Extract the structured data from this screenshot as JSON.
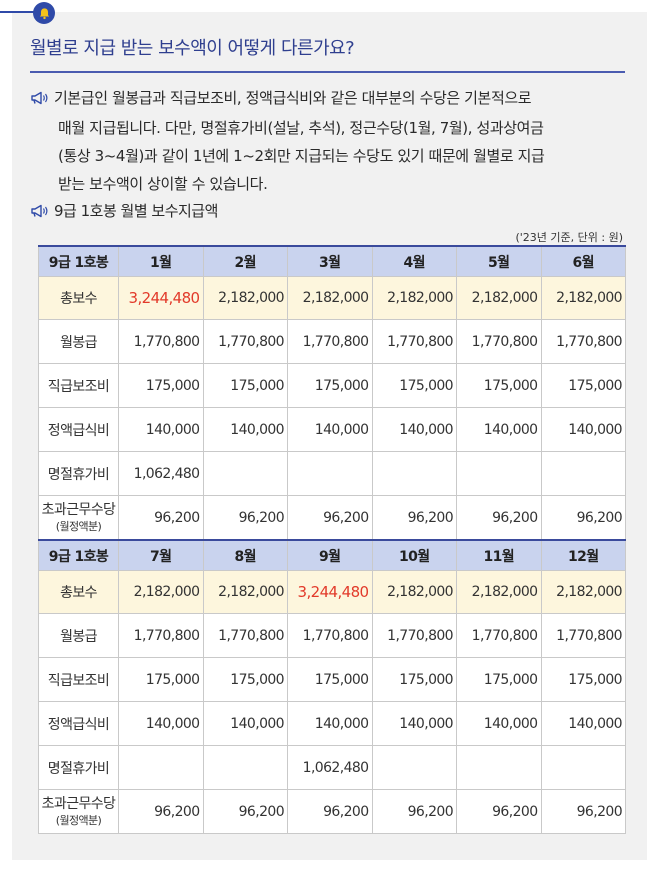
{
  "title": "월별로 지급 받는 보수액이 어떻게 다른가요?",
  "paragraph_lines": [
    "기본급인 월봉급과 직급보조비, 정액급식비와 같은 대부분의 수당은 기본적으로",
    "매월 지급됩니다. 다만, 명절휴가비(설날, 추석), 정근수당(1월, 7월), 성과상여금",
    "(통상 3~4월)과 같이 1년에 1~2회만 지급되는 수당도 있기 때문에 월별로 지급",
    "받는 보수액이 상이할 수 있습니다."
  ],
  "subheading": "9급 1호봉 월별 보수지급액",
  "unit_note": "('23년 기준, 단위 : 원)",
  "icons": {
    "header": "bell-icon",
    "bullet": "megaphone-icon"
  },
  "colors": {
    "accent": "#2f4aa8",
    "header_bg": "#c9d3ee",
    "total_bg": "#fdf6dd",
    "highlight": "#e23a2a"
  },
  "table": {
    "blocks": [
      {
        "header": [
          "9급 1호봉",
          "1월",
          "2월",
          "3월",
          "4월",
          "5월",
          "6월"
        ],
        "rows": [
          {
            "label": "총보수",
            "values": [
              "3,244,480",
              "2,182,000",
              "2,182,000",
              "2,182,000",
              "2,182,000",
              "2,182,000"
            ]
          },
          {
            "label": "월봉급",
            "values": [
              "1,770,800",
              "1,770,800",
              "1,770,800",
              "1,770,800",
              "1,770,800",
              "1,770,800"
            ]
          },
          {
            "label": "직급보조비",
            "values": [
              "175,000",
              "175,000",
              "175,000",
              "175,000",
              "175,000",
              "175,000"
            ]
          },
          {
            "label": "정액급식비",
            "values": [
              "140,000",
              "140,000",
              "140,000",
              "140,000",
              "140,000",
              "140,000"
            ]
          },
          {
            "label": "명절휴가비",
            "values": [
              "1,062,480",
              "",
              "",
              "",
              "",
              ""
            ]
          },
          {
            "label": "초과근무수당",
            "sublabel": "(월정액분)",
            "values": [
              "96,200",
              "96,200",
              "96,200",
              "96,200",
              "96,200",
              "96,200"
            ]
          }
        ]
      },
      {
        "header": [
          "9급 1호봉",
          "7월",
          "8월",
          "9월",
          "10월",
          "11월",
          "12월"
        ],
        "rows": [
          {
            "label": "총보수",
            "values": [
              "2,182,000",
              "2,182,000",
              "3,244,480",
              "2,182,000",
              "2,182,000",
              "2,182,000"
            ]
          },
          {
            "label": "월봉급",
            "values": [
              "1,770,800",
              "1,770,800",
              "1,770,800",
              "1,770,800",
              "1,770,800",
              "1,770,800"
            ]
          },
          {
            "label": "직급보조비",
            "values": [
              "175,000",
              "175,000",
              "175,000",
              "175,000",
              "175,000",
              "175,000"
            ]
          },
          {
            "label": "정액급식비",
            "values": [
              "140,000",
              "140,000",
              "140,000",
              "140,000",
              "140,000",
              "140,000"
            ]
          },
          {
            "label": "명절휴가비",
            "values": [
              "",
              "",
              "1,062,480",
              "",
              "",
              ""
            ]
          },
          {
            "label": "초과근무수당",
            "sublabel": "(월정액분)",
            "values": [
              "96,200",
              "96,200",
              "96,200",
              "96,200",
              "96,200",
              "96,200"
            ]
          }
        ]
      }
    ]
  }
}
